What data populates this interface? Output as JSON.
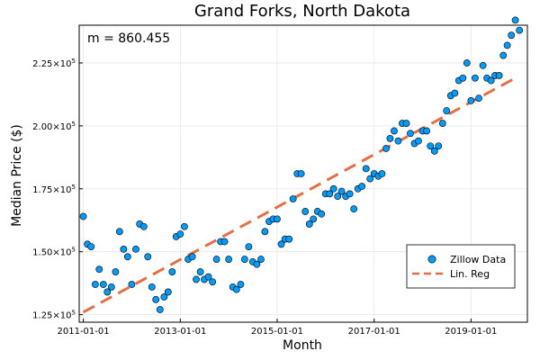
{
  "chart_data": {
    "type": "scatter",
    "title": "Grand Forks, North Dakota",
    "xlabel": "Month",
    "ylabel": "Median Price ($)",
    "annotation": "m = 860.455",
    "x_range": [
      "2010-12-01",
      "2020-03-01"
    ],
    "ylim": [
      122000,
      240000
    ],
    "x_ticks": [
      {
        "date": "2011-01-01",
        "label": "2011-01-01"
      },
      {
        "date": "2013-01-01",
        "label": "2013-01-01"
      },
      {
        "date": "2015-01-01",
        "label": "2015-01-01"
      },
      {
        "date": "2017-01-01",
        "label": "2017-01-01"
      },
      {
        "date": "2019-01-01",
        "label": "2019-01-01"
      }
    ],
    "y_ticks": [
      {
        "value": 125000,
        "mantissa": "1.25",
        "exp": "5"
      },
      {
        "value": 150000,
        "mantissa": "1.50",
        "exp": "5"
      },
      {
        "value": 175000,
        "mantissa": "1.75",
        "exp": "5"
      },
      {
        "value": 200000,
        "mantissa": "2.00",
        "exp": "5"
      },
      {
        "value": 225000,
        "mantissa": "2.25",
        "exp": "5"
      }
    ],
    "grid": true,
    "legend_position": "bottom-right",
    "series": [
      {
        "name": "Zillow Data",
        "kind": "scatter",
        "color": "#009af9",
        "start": "2011-01",
        "values": [
          164000,
          153000,
          152000,
          137000,
          143000,
          137000,
          134000,
          136000,
          142000,
          158000,
          151000,
          148000,
          137000,
          151000,
          161000,
          160000,
          148000,
          136000,
          131000,
          127000,
          132000,
          134000,
          142000,
          156000,
          157000,
          160000,
          147000,
          148000,
          139000,
          142000,
          139000,
          140000,
          138000,
          147000,
          154000,
          154000,
          147000,
          136000,
          135000,
          137000,
          147000,
          152000,
          146000,
          145000,
          147000,
          158000,
          162000,
          163000,
          163000,
          153000,
          155000,
          155000,
          171000,
          181000,
          181000,
          166000,
          161000,
          163000,
          166000,
          165000,
          173000,
          173000,
          175000,
          172000,
          174000,
          172000,
          173000,
          167000,
          175000,
          176000,
          183000,
          179000,
          181000,
          180000,
          181000,
          191000,
          195000,
          198000,
          194000,
          201000,
          201000,
          197000,
          193000,
          194000,
          198000,
          198000,
          192000,
          190000,
          192000,
          201000,
          206000,
          212000,
          213000,
          218000,
          219000,
          225000,
          210000,
          219000,
          211000,
          224000,
          219000,
          218000,
          220000,
          220000,
          228000,
          232000,
          236000,
          242000,
          238000
        ]
      },
      {
        "name": "Lin. Reg",
        "kind": "line",
        "color": "#e26f46",
        "start": "2011-01-01",
        "end": "2019-12-01",
        "y_start": 126000,
        "y_end": 219000
      }
    ]
  }
}
